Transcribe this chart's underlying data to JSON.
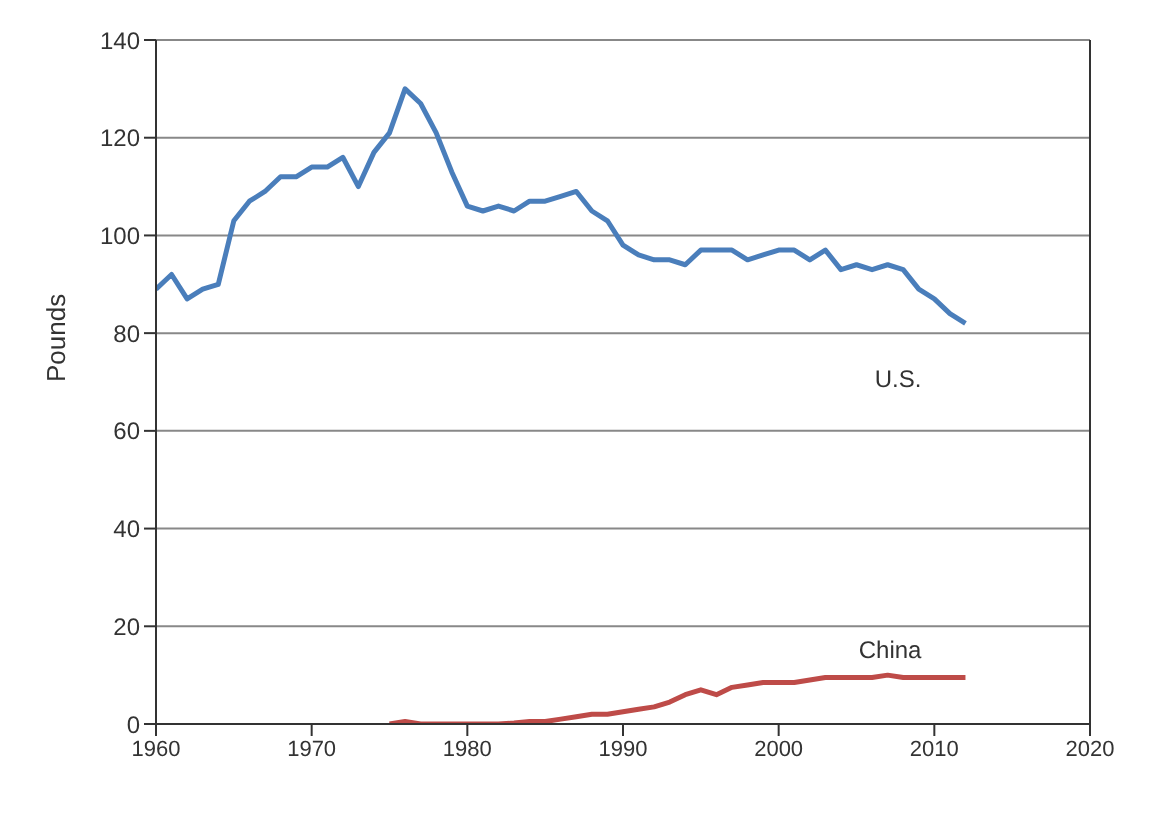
{
  "chart_data": {
    "type": "line",
    "ylabel": "Pounds",
    "xlim": [
      1960,
      2020
    ],
    "xticks": [
      1960,
      1970,
      1980,
      1990,
      2000,
      2010,
      2020
    ],
    "ylim": [
      0,
      140
    ],
    "yticks": [
      0,
      20,
      40,
      60,
      80,
      100,
      120,
      140
    ],
    "grid": "y",
    "legend": false,
    "marker": "none",
    "line_style": "solid",
    "series": [
      {
        "name": "U.S.",
        "color": "#4a7ebb",
        "x": [
          1960,
          1961,
          1962,
          1963,
          1964,
          1965,
          1966,
          1967,
          1968,
          1969,
          1970,
          1971,
          1972,
          1973,
          1974,
          1975,
          1976,
          1977,
          1978,
          1979,
          1980,
          1981,
          1982,
          1983,
          1984,
          1985,
          1986,
          1987,
          1988,
          1989,
          1990,
          1991,
          1992,
          1993,
          1994,
          1995,
          1996,
          1997,
          1998,
          1999,
          2000,
          2001,
          2002,
          2003,
          2004,
          2005,
          2006,
          2007,
          2008,
          2009,
          2010,
          2011,
          2012
        ],
        "values": [
          89,
          92,
          87,
          89,
          90,
          103,
          107,
          109,
          112,
          112,
          114,
          114,
          116,
          110,
          117,
          121,
          130,
          127,
          121,
          113,
          106,
          105,
          106,
          105,
          107,
          107,
          108,
          109,
          105,
          103,
          98,
          96,
          95,
          95,
          94,
          97,
          97,
          97,
          95,
          96,
          97,
          97,
          95,
          97,
          93,
          94,
          93,
          94,
          93,
          89,
          87,
          84,
          82
        ]
      },
      {
        "name": "China",
        "color": "#be4b48",
        "x": [
          1975,
          1976,
          1977,
          1978,
          1979,
          1980,
          1981,
          1982,
          1983,
          1984,
          1985,
          1986,
          1987,
          1988,
          1989,
          1990,
          1991,
          1992,
          1993,
          1994,
          1995,
          1996,
          1997,
          1998,
          1999,
          2000,
          2001,
          2002,
          2003,
          2004,
          2005,
          2006,
          2007,
          2008,
          2009,
          2010,
          2011,
          2012
        ],
        "values": [
          0,
          0.5,
          0,
          0,
          0,
          0,
          0,
          0,
          0.2,
          0.5,
          0.5,
          1,
          1.5,
          2,
          2,
          2.5,
          3,
          3.5,
          4.5,
          6,
          7,
          6,
          7.5,
          8,
          8.5,
          8.5,
          8.5,
          9,
          9.5,
          9.5,
          9.5,
          9.5,
          10,
          9.5,
          9.5,
          9.5,
          9.5,
          9.5
        ]
      }
    ]
  }
}
